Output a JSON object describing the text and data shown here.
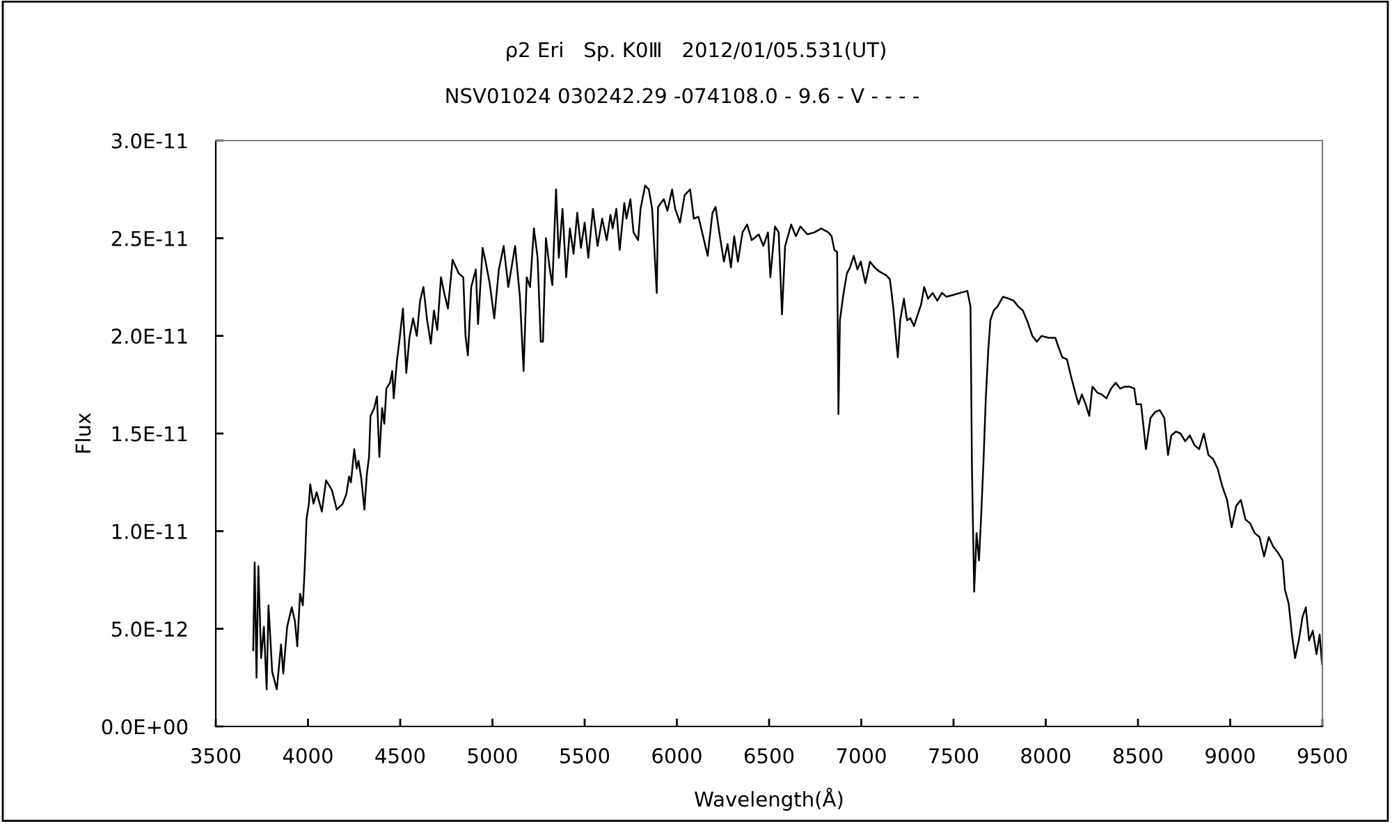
{
  "chart_data": {
    "type": "line",
    "title": "ρ2 Eri   Sp. K0Ⅲ   2012/01/05.531(UT)",
    "subtitle": "NSV01024 030242.29 -074108.0 - 9.6 - V - - - -",
    "xlabel": "Wavelength(Å)",
    "ylabel": "Flux",
    "x": [
      3703,
      3711,
      3721,
      3731,
      3746,
      3761,
      3776,
      3786,
      3806,
      3831,
      3854,
      3866,
      3887,
      3912,
      3929,
      3942,
      3957,
      3972,
      3982,
      3992,
      4005,
      4012,
      4030,
      4047,
      4075,
      4098,
      4130,
      4156,
      4188,
      4208,
      4223,
      4233,
      4251,
      4264,
      4274,
      4289,
      4306,
      4319,
      4331,
      4339,
      4359,
      4374,
      4387,
      4402,
      4414,
      4425,
      4445,
      4457,
      4465,
      4482,
      4495,
      4515,
      4533,
      4550,
      4570,
      4590,
      4608,
      4626,
      4646,
      4666,
      4683,
      4701,
      4721,
      4741,
      4759,
      4784,
      4817,
      4842,
      4854,
      4867,
      4885,
      4910,
      4922,
      4947,
      4965,
      4985,
      5010,
      5035,
      5061,
      5086,
      5123,
      5149,
      5169,
      5186,
      5204,
      5225,
      5245,
      5262,
      5274,
      5290,
      5310,
      5325,
      5345,
      5360,
      5380,
      5400,
      5420,
      5440,
      5460,
      5480,
      5500,
      5520,
      5545,
      5570,
      5595,
      5620,
      5640,
      5652,
      5672,
      5690,
      5715,
      5727,
      5748,
      5765,
      5790,
      5803,
      5828,
      5848,
      5866,
      5891,
      5898,
      5929,
      5949,
      5974,
      5991,
      6017,
      6042,
      6072,
      6092,
      6117,
      6142,
      6167,
      6193,
      6210,
      6230,
      6255,
      6275,
      6293,
      6311,
      6331,
      6356,
      6381,
      6406,
      6444,
      6469,
      6494,
      6507,
      6532,
      6552,
      6570,
      6587,
      6620,
      6645,
      6670,
      6708,
      6746,
      6783,
      6821,
      6839,
      6854,
      6869,
      6876,
      6884,
      6904,
      6922,
      6939,
      6959,
      6979,
      6997,
      7022,
      7047,
      7072,
      7098,
      7135,
      7155,
      7173,
      7186,
      7198,
      7211,
      7231,
      7248,
      7266,
      7286,
      7306,
      7324,
      7341,
      7362,
      7387,
      7412,
      7437,
      7462,
      7500,
      7537,
      7575,
      7592,
      7600,
      7612,
      7625,
      7638,
      7650,
      7663,
      7675,
      7688,
      7700,
      7718,
      7738,
      7768,
      7801,
      7826,
      7851,
      7876,
      7902,
      7927,
      7952,
      7977,
      8015,
      8052,
      8070,
      8090,
      8115,
      8135,
      8160,
      8178,
      8196,
      8216,
      8236,
      8253,
      8279,
      8304,
      8329,
      8354,
      8379,
      8404,
      8429,
      8455,
      8480,
      8492,
      8517,
      8543,
      8568,
      8593,
      8618,
      8643,
      8663,
      8681,
      8706,
      8731,
      8756,
      8781,
      8807,
      8832,
      8857,
      8882,
      8907,
      8932,
      8957,
      8983,
      9008,
      9033,
      9058,
      9083,
      9108,
      9133,
      9159,
      9184,
      9209,
      9234,
      9259,
      9284,
      9297,
      9317,
      9335,
      9352,
      9372,
      9392,
      9410,
      9428,
      9448,
      9468,
      9485,
      9498
    ],
    "series": [
      {
        "color": "#000000",
        "values": [
          3.9e-12,
          8.4e-12,
          2.5e-12,
          8.2e-12,
          3.5e-12,
          5.1e-12,
          1.9e-12,
          6.2e-12,
          2.8e-12,
          1.9e-12,
          4.2e-12,
          2.7e-12,
          5.1e-12,
          6.1e-12,
          5.4e-12,
          4.1e-12,
          6.8e-12,
          6.2e-12,
          8e-12,
          1.06e-11,
          1.14e-11,
          1.24e-11,
          1.14e-11,
          1.2e-11,
          1.1e-11,
          1.26e-11,
          1.21e-11,
          1.11e-11,
          1.14e-11,
          1.19e-11,
          1.28e-11,
          1.25e-11,
          1.42e-11,
          1.32e-11,
          1.36e-11,
          1.27e-11,
          1.11e-11,
          1.29e-11,
          1.38e-11,
          1.59e-11,
          1.63e-11,
          1.69e-11,
          1.38e-11,
          1.63e-11,
          1.55e-11,
          1.73e-11,
          1.76e-11,
          1.82e-11,
          1.68e-11,
          1.87e-11,
          1.97e-11,
          2.14e-11,
          1.81e-11,
          1.99e-11,
          2.09e-11,
          2e-11,
          2.18e-11,
          2.25e-11,
          2.08e-11,
          1.96e-11,
          2.13e-11,
          2.03e-11,
          2.3e-11,
          2.21e-11,
          2.14e-11,
          2.39e-11,
          2.32e-11,
          2.3e-11,
          2e-11,
          1.9e-11,
          2.25e-11,
          2.34e-11,
          2.06e-11,
          2.45e-11,
          2.37e-11,
          2.27e-11,
          2.09e-11,
          2.34e-11,
          2.46e-11,
          2.25e-11,
          2.46e-11,
          2.2e-11,
          1.82e-11,
          2.3e-11,
          2.25e-11,
          2.55e-11,
          2.4e-11,
          1.97e-11,
          1.97e-11,
          2.5e-11,
          2.35e-11,
          2.26e-11,
          2.75e-11,
          2.4e-11,
          2.65e-11,
          2.3e-11,
          2.55e-11,
          2.42e-11,
          2.63e-11,
          2.45e-11,
          2.58e-11,
          2.4e-11,
          2.65e-11,
          2.46e-11,
          2.6e-11,
          2.49e-11,
          2.62e-11,
          2.55e-11,
          2.65e-11,
          2.44e-11,
          2.68e-11,
          2.6e-11,
          2.7e-11,
          2.53e-11,
          2.49e-11,
          2.65e-11,
          2.77e-11,
          2.75e-11,
          2.65e-11,
          2.22e-11,
          2.66e-11,
          2.7e-11,
          2.64e-11,
          2.75e-11,
          2.65e-11,
          2.58e-11,
          2.72e-11,
          2.75e-11,
          2.6e-11,
          2.61e-11,
          2.51e-11,
          2.41e-11,
          2.63e-11,
          2.66e-11,
          2.53e-11,
          2.38e-11,
          2.47e-11,
          2.35e-11,
          2.51e-11,
          2.38e-11,
          2.53e-11,
          2.57e-11,
          2.49e-11,
          2.52e-11,
          2.46e-11,
          2.53e-11,
          2.3e-11,
          2.56e-11,
          2.53e-11,
          2.11e-11,
          2.46e-11,
          2.57e-11,
          2.51e-11,
          2.56e-11,
          2.52e-11,
          2.53e-11,
          2.55e-11,
          2.53e-11,
          2.51e-11,
          2.44e-11,
          2.43e-11,
          1.6e-11,
          2.08e-11,
          2.22e-11,
          2.32e-11,
          2.35e-11,
          2.41e-11,
          2.34e-11,
          2.38e-11,
          2.27e-11,
          2.38e-11,
          2.35e-11,
          2.33e-11,
          2.31e-11,
          2.29e-11,
          2.15e-11,
          2.01e-11,
          1.89e-11,
          2.08e-11,
          2.19e-11,
          2.08e-11,
          2.09e-11,
          2.05e-11,
          2.11e-11,
          2.16e-11,
          2.25e-11,
          2.19e-11,
          2.22e-11,
          2.18e-11,
          2.22e-11,
          2.2e-11,
          2.21e-11,
          2.22e-11,
          2.23e-11,
          2.15e-11,
          1.32e-11,
          6.9e-12,
          9.9e-12,
          8.5e-12,
          1.08e-11,
          1.37e-11,
          1.68e-11,
          1.92e-11,
          2.08e-11,
          2.13e-11,
          2.15e-11,
          2.2e-11,
          2.19e-11,
          2.18e-11,
          2.15e-11,
          2.13e-11,
          2.07e-11,
          2e-11,
          1.97e-11,
          2e-11,
          1.99e-11,
          1.99e-11,
          1.94e-11,
          1.89e-11,
          1.88e-11,
          1.8e-11,
          1.71e-11,
          1.65e-11,
          1.7e-11,
          1.65e-11,
          1.59e-11,
          1.74e-11,
          1.71e-11,
          1.7e-11,
          1.68e-11,
          1.73e-11,
          1.76e-11,
          1.73e-11,
          1.74e-11,
          1.74e-11,
          1.73e-11,
          1.65e-11,
          1.65e-11,
          1.42e-11,
          1.58e-11,
          1.61e-11,
          1.62e-11,
          1.58e-11,
          1.39e-11,
          1.49e-11,
          1.51e-11,
          1.5e-11,
          1.46e-11,
          1.49e-11,
          1.44e-11,
          1.42e-11,
          1.5e-11,
          1.39e-11,
          1.37e-11,
          1.32e-11,
          1.23e-11,
          1.16e-11,
          1.02e-11,
          1.13e-11,
          1.16e-11,
          1.06e-11,
          1.04e-11,
          9.9e-12,
          9.7e-12,
          8.7e-12,
          9.7e-12,
          9.2e-12,
          8.9e-12,
          8.5e-12,
          7e-12,
          6.3e-12,
          4.7e-12,
          3.5e-12,
          4.4e-12,
          5.6e-12,
          6.1e-12,
          4.4e-12,
          4.9e-12,
          3.7e-12,
          4.7e-12,
          3.2e-12
        ]
      }
    ],
    "xlim": [
      3500,
      9500
    ],
    "xticks": [
      3500,
      4000,
      4500,
      5000,
      5500,
      6000,
      6500,
      7000,
      7500,
      8000,
      8500,
      9000,
      9500
    ],
    "ylim": [
      0,
      3e-11
    ],
    "yticks": [
      {
        "value": 0,
        "label": "0.0E+00"
      },
      {
        "value": 5e-12,
        "label": "5.0E-12"
      },
      {
        "value": 1e-11,
        "label": "1.0E-11"
      },
      {
        "value": 1.5e-11,
        "label": "1.5E-11"
      },
      {
        "value": 2e-11,
        "label": "2.0E-11"
      },
      {
        "value": 2.5e-11,
        "label": "2.5E-11"
      },
      {
        "value": 3e-11,
        "label": "3.0E-11"
      }
    ],
    "line_style": "solid"
  }
}
